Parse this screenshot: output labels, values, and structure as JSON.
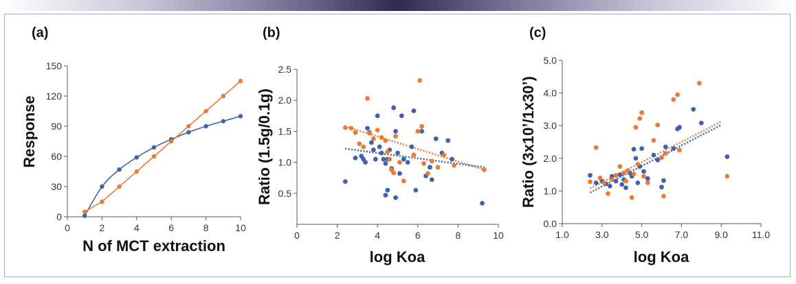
{
  "colors": {
    "blue": "#3f62ac",
    "orange": "#ea7a36",
    "frame": "#a7a7c4",
    "banner": "#2e2b55"
  },
  "chart_data": [
    {
      "label": "(a)",
      "type": "line",
      "xlabel": "N of MCT extraction",
      "ylabel": "Response",
      "xlim": [
        0,
        10
      ],
      "ylim": [
        0,
        150
      ],
      "xticks": [
        "0",
        "2",
        "4",
        "6",
        "8",
        "10"
      ],
      "yticks": [
        "0",
        "30",
        "60",
        "90",
        "120",
        "150"
      ],
      "xtick_values": [
        0,
        2,
        4,
        6,
        8,
        10
      ],
      "ytick_values": [
        0,
        30,
        60,
        90,
        120,
        150
      ],
      "grid": false,
      "series": [
        {
          "color": "blue",
          "smooth": true,
          "points": [
            [
              1,
              1
            ],
            [
              2,
              30
            ],
            [
              3,
              47
            ],
            [
              4,
              59
            ],
            [
              5,
              69
            ],
            [
              6,
              77
            ],
            [
              7,
              84
            ],
            [
              8,
              90
            ],
            [
              9,
              95
            ],
            [
              10,
              100
            ]
          ]
        },
        {
          "color": "orange",
          "smooth": false,
          "points": [
            [
              1,
              5
            ],
            [
              2,
              15
            ],
            [
              3,
              30
            ],
            [
              4,
              45
            ],
            [
              5,
              60
            ],
            [
              6,
              75
            ],
            [
              7,
              90
            ],
            [
              8,
              105
            ],
            [
              9,
              120
            ],
            [
              10,
              135
            ]
          ]
        }
      ]
    },
    {
      "label": "(b)",
      "type": "scatter",
      "xlabel": "log Koa",
      "ylabel": "Ratio (1.5g/0.1g)",
      "xlim": [
        0,
        10
      ],
      "ylim": [
        0,
        2.5
      ],
      "xticks": [
        "0",
        "2",
        "4",
        "6",
        "8",
        "10"
      ],
      "yticks": [
        "0.5",
        "1.0",
        "1.5",
        "2.0",
        "2.5"
      ],
      "xtick_values": [
        0,
        2,
        4,
        6,
        8,
        10
      ],
      "ytick_values": [
        0.5,
        1.0,
        1.5,
        2.0,
        2.5
      ],
      "grid": false,
      "series": [
        {
          "color": "blue",
          "points": [
            [
              2.4,
              0.69
            ],
            [
              2.9,
              1.07
            ],
            [
              3.2,
              1.1
            ],
            [
              3.3,
              1.05
            ],
            [
              3.4,
              1.0
            ],
            [
              3.5,
              1.55
            ],
            [
              3.6,
              1.48
            ],
            [
              3.7,
              1.32
            ],
            [
              3.8,
              1.2
            ],
            [
              3.9,
              1.05
            ],
            [
              4.0,
              1.75
            ],
            [
              4.1,
              1.25
            ],
            [
              4.2,
              1.15
            ],
            [
              4.3,
              1.05
            ],
            [
              4.4,
              0.98
            ],
            [
              4.5,
              1.05
            ],
            [
              4.6,
              1.2
            ],
            [
              4.7,
              0.9
            ],
            [
              4.8,
              1.88
            ],
            [
              4.9,
              1.5
            ],
            [
              5.0,
              1.15
            ],
            [
              5.1,
              0.82
            ],
            [
              5.2,
              1.75
            ],
            [
              5.3,
              1.05
            ],
            [
              4.4,
              0.47
            ],
            [
              4.5,
              0.55
            ],
            [
              4.9,
              0.43
            ],
            [
              5.5,
              1.0
            ],
            [
              5.7,
              1.25
            ],
            [
              5.8,
              1.83
            ],
            [
              5.9,
              0.55
            ],
            [
              6.2,
              1.5
            ],
            [
              6.4,
              0.78
            ],
            [
              6.6,
              0.92
            ],
            [
              6.7,
              0.72
            ],
            [
              6.9,
              1.38
            ],
            [
              7.2,
              1.15
            ],
            [
              7.5,
              1.35
            ],
            [
              7.7,
              1.05
            ],
            [
              9.2,
              0.34
            ]
          ]
        },
        {
          "color": "orange",
          "points": [
            [
              2.4,
              1.56
            ],
            [
              2.7,
              1.55
            ],
            [
              2.9,
              1.48
            ],
            [
              3.1,
              1.3
            ],
            [
              3.3,
              1.25
            ],
            [
              3.5,
              2.03
            ],
            [
              3.6,
              1.47
            ],
            [
              3.8,
              1.38
            ],
            [
              4.0,
              1.52
            ],
            [
              4.2,
              1.4
            ],
            [
              4.4,
              1.35
            ],
            [
              4.5,
              1.17
            ],
            [
              4.6,
              1.05
            ],
            [
              4.7,
              0.88
            ],
            [
              4.8,
              0.83
            ],
            [
              4.9,
              1.42
            ],
            [
              5.1,
              1.0
            ],
            [
              5.3,
              0.7
            ],
            [
              5.8,
              1.12
            ],
            [
              6.0,
              1.5
            ],
            [
              6.1,
              2.32
            ],
            [
              6.2,
              1.58
            ],
            [
              6.3,
              0.98
            ],
            [
              6.5,
              0.82
            ],
            [
              6.7,
              1.02
            ],
            [
              7.0,
              0.92
            ],
            [
              7.3,
              1.12
            ],
            [
              7.8,
              0.95
            ],
            [
              9.3,
              0.88
            ]
          ]
        }
      ],
      "trendlines": [
        {
          "color": "blue",
          "from": [
            2.4,
            1.22
          ],
          "to": [
            9.3,
            0.92
          ]
        },
        {
          "color": "orange",
          "from": [
            2.4,
            1.58
          ],
          "to": [
            9.3,
            0.88
          ]
        }
      ]
    },
    {
      "label": "(c)",
      "type": "scatter",
      "xlabel": "log Koa",
      "ylabel": "Ratio (3x10’/1x30’)",
      "xlim": [
        1.0,
        11.0
      ],
      "ylim": [
        0.0,
        5.0
      ],
      "xticks": [
        "1.0",
        "3.0",
        "5.0",
        "7.0",
        "9.0",
        "11.0"
      ],
      "yticks": [
        "0.0",
        "1.0",
        "2.0",
        "3.0",
        "4.0",
        "5.0"
      ],
      "xtick_values": [
        1,
        3,
        5,
        7,
        9,
        11
      ],
      "ytick_values": [
        0,
        1,
        2,
        3,
        4,
        5
      ],
      "grid": false,
      "series": [
        {
          "color": "blue",
          "points": [
            [
              2.4,
              1.48
            ],
            [
              2.7,
              1.25
            ],
            [
              3.0,
              1.3
            ],
            [
              3.2,
              1.22
            ],
            [
              3.4,
              1.15
            ],
            [
              3.5,
              1.45
            ],
            [
              3.7,
              1.3
            ],
            [
              3.9,
              1.5
            ],
            [
              4.0,
              1.2
            ],
            [
              4.1,
              1.35
            ],
            [
              4.2,
              1.1
            ],
            [
              4.3,
              1.62
            ],
            [
              4.4,
              1.55
            ],
            [
              4.5,
              1.45
            ],
            [
              4.6,
              2.28
            ],
            [
              4.7,
              2.0
            ],
            [
              4.8,
              1.25
            ],
            [
              4.9,
              1.75
            ],
            [
              5.0,
              2.3
            ],
            [
              5.1,
              1.6
            ],
            [
              5.3,
              1.38
            ],
            [
              5.6,
              2.1
            ],
            [
              5.8,
              1.95
            ],
            [
              6.0,
              1.12
            ],
            [
              6.1,
              1.32
            ],
            [
              6.2,
              2.35
            ],
            [
              6.6,
              2.3
            ],
            [
              6.8,
              2.9
            ],
            [
              6.9,
              2.95
            ],
            [
              7.6,
              3.5
            ],
            [
              8.0,
              3.08
            ],
            [
              9.3,
              2.05
            ]
          ]
        },
        {
          "color": "orange",
          "points": [
            [
              2.4,
              1.28
            ],
            [
              2.7,
              2.33
            ],
            [
              2.9,
              1.4
            ],
            [
              3.1,
              1.25
            ],
            [
              3.3,
              0.92
            ],
            [
              3.5,
              1.35
            ],
            [
              3.7,
              1.48
            ],
            [
              3.9,
              1.75
            ],
            [
              4.1,
              1.55
            ],
            [
              4.2,
              1.3
            ],
            [
              4.3,
              1.62
            ],
            [
              4.5,
              0.8
            ],
            [
              4.6,
              1.52
            ],
            [
              4.7,
              2.95
            ],
            [
              4.8,
              1.82
            ],
            [
              4.9,
              3.22
            ],
            [
              5.0,
              3.4
            ],
            [
              5.1,
              1.45
            ],
            [
              5.3,
              1.25
            ],
            [
              5.6,
              2.55
            ],
            [
              5.8,
              3.02
            ],
            [
              6.0,
              2.02
            ],
            [
              6.1,
              0.84
            ],
            [
              6.2,
              2.15
            ],
            [
              6.6,
              3.8
            ],
            [
              6.8,
              3.95
            ],
            [
              6.9,
              2.25
            ],
            [
              7.9,
              4.3
            ],
            [
              9.3,
              1.45
            ]
          ]
        }
      ],
      "trendlines": [
        {
          "color": "blue",
          "from": [
            2.4,
            0.95
          ],
          "to": [
            9.0,
            3.02
          ]
        },
        {
          "color": "orange",
          "from": [
            2.4,
            1.08
          ],
          "to": [
            9.0,
            3.12
          ]
        }
      ]
    }
  ]
}
